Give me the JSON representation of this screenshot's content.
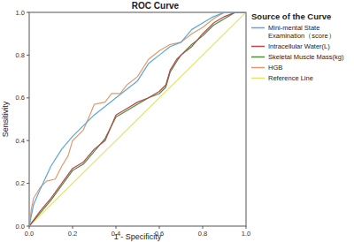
{
  "chart_data": {
    "type": "line",
    "title": "ROC Curve",
    "x_label": "1 - Specificity",
    "y_label": "Sensitivity",
    "legend_title": "Source of the Curve",
    "legend": "right",
    "grid": false,
    "xlim": [
      0,
      1
    ],
    "ylim": [
      0,
      1
    ],
    "xticks": [
      {
        "value": 0,
        "label": "0.0"
      },
      0.2,
      0.4,
      0.6,
      0.8,
      {
        "value": 1,
        "label": "1.0"
      }
    ],
    "yticks": [
      {
        "value": 0,
        "label": "0.0"
      },
      0.2,
      0.4,
      0.6,
      0.8,
      {
        "value": 1,
        "label": "1.0"
      }
    ],
    "series": [
      {
        "name": "Mini-mental State Examination（score）",
        "color": "#5aa7d9",
        "x": [
          0,
          0.02,
          0.05,
          0.1,
          0.15,
          0.2,
          0.3,
          0.4,
          0.5,
          0.55,
          0.6,
          0.65,
          0.7,
          0.75,
          0.8,
          0.85,
          0.9,
          1
        ],
        "values": [
          0,
          0.1,
          0.17,
          0.28,
          0.36,
          0.42,
          0.52,
          0.6,
          0.68,
          0.76,
          0.8,
          0.84,
          0.86,
          0.92,
          0.95,
          0.98,
          1,
          1
        ]
      },
      {
        "name": "Intracellular Water(L)",
        "color": "#b5484a",
        "x": [
          0,
          0.05,
          0.1,
          0.15,
          0.2,
          0.25,
          0.3,
          0.35,
          0.4,
          0.45,
          0.5,
          0.55,
          0.6,
          0.63,
          0.65,
          0.68,
          0.7,
          0.75,
          0.8,
          0.85,
          0.9,
          0.95,
          1
        ],
        "values": [
          0,
          0.07,
          0.13,
          0.2,
          0.27,
          0.3,
          0.36,
          0.4,
          0.52,
          0.55,
          0.58,
          0.6,
          0.63,
          0.66,
          0.73,
          0.78,
          0.8,
          0.84,
          0.9,
          0.95,
          0.98,
          1,
          1
        ]
      },
      {
        "name": "Skeletal Muscle Mass(kg)",
        "color": "#4e8a3e",
        "x": [
          0,
          0.05,
          0.1,
          0.15,
          0.2,
          0.25,
          0.3,
          0.35,
          0.4,
          0.45,
          0.5,
          0.55,
          0.6,
          0.63,
          0.65,
          0.68,
          0.7,
          0.75,
          0.8,
          0.85,
          0.9,
          0.95,
          1
        ],
        "values": [
          0,
          0.06,
          0.12,
          0.19,
          0.26,
          0.29,
          0.35,
          0.41,
          0.51,
          0.54,
          0.57,
          0.6,
          0.62,
          0.65,
          0.72,
          0.77,
          0.8,
          0.85,
          0.89,
          0.94,
          0.97,
          1,
          1
        ]
      },
      {
        "name": "HGB",
        "color": "#e39a6b",
        "x": [
          0,
          0.01,
          0.02,
          0.05,
          0.08,
          0.12,
          0.15,
          0.18,
          0.2,
          0.25,
          0.28,
          0.3,
          0.35,
          0.38,
          0.42,
          0.45,
          0.5,
          0.55,
          0.6,
          0.65,
          0.7,
          0.75,
          0.8,
          0.85,
          0.9,
          1
        ],
        "values": [
          0,
          0.08,
          0.13,
          0.18,
          0.21,
          0.22,
          0.28,
          0.33,
          0.4,
          0.45,
          0.52,
          0.57,
          0.58,
          0.62,
          0.62,
          0.66,
          0.7,
          0.78,
          0.82,
          0.85,
          0.86,
          0.9,
          0.93,
          0.97,
          1,
          1
        ]
      },
      {
        "name": "Reference Line",
        "color": "#e6e264",
        "x": [
          0,
          1
        ],
        "values": [
          0,
          1
        ]
      }
    ]
  }
}
